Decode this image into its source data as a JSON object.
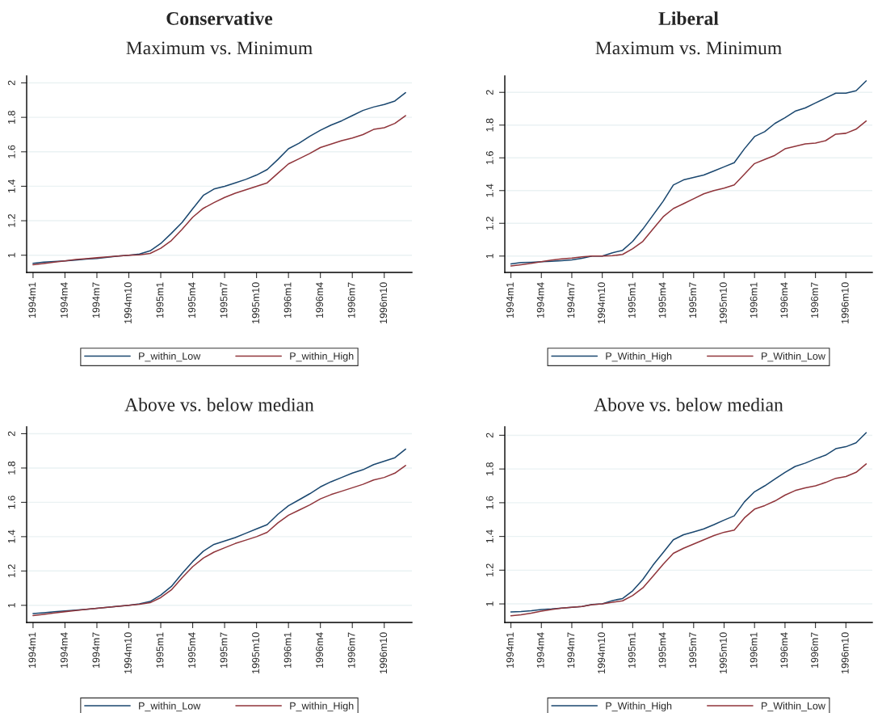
{
  "chart_data": [
    {
      "type": "line",
      "title": "Conservative",
      "subtitle": "Maximum vs. Minimum",
      "categories": [
        "1994m1",
        null,
        null,
        "1994m4",
        null,
        null,
        "1994m7",
        null,
        null,
        "1994m10",
        null,
        null,
        "1995m1",
        null,
        null,
        "1995m4",
        null,
        null,
        "1995m7",
        null,
        null,
        "1995m10",
        null,
        null,
        "1996m1",
        null,
        null,
        "1996m4",
        null,
        null,
        "1996m7",
        null,
        null,
        "1996m10",
        null,
        null
      ],
      "series": [
        {
          "name": "P_within_Low",
          "color": "#1a476f",
          "values": [
            0.953,
            0.96,
            0.963,
            0.967,
            0.972,
            0.977,
            0.981,
            0.988,
            0.995,
            1.0,
            1.007,
            1.025,
            1.068,
            1.127,
            1.19,
            1.269,
            1.347,
            1.384,
            1.4,
            1.42,
            1.44,
            1.465,
            1.497,
            1.555,
            1.618,
            1.65,
            1.69,
            1.725,
            1.755,
            1.78,
            1.81,
            1.84,
            1.86,
            1.875,
            1.895,
            1.943
          ]
        },
        {
          "name": "P_within_High",
          "color": "#90353b",
          "values": [
            0.945,
            0.952,
            0.96,
            0.967,
            0.975,
            0.98,
            0.985,
            0.99,
            0.995,
            1.0,
            1.002,
            1.01,
            1.04,
            1.085,
            1.15,
            1.22,
            1.272,
            1.305,
            1.335,
            1.36,
            1.38,
            1.4,
            1.42,
            1.475,
            1.53,
            1.56,
            1.59,
            1.625,
            1.645,
            1.665,
            1.68,
            1.7,
            1.73,
            1.74,
            1.765,
            1.81
          ]
        }
      ],
      "ylim": [
        0.9,
        2.04
      ],
      "yticks": [
        1,
        1.2,
        1.4,
        1.6,
        1.8,
        2
      ],
      "grid": "y",
      "legend": "bottom"
    },
    {
      "type": "line",
      "title": "Liberal",
      "subtitle": "Maximum vs. Minimum",
      "categories": [
        "1994m1",
        null,
        null,
        "1994m4",
        null,
        null,
        "1994m7",
        null,
        null,
        "1994m10",
        null,
        null,
        "1995m1",
        null,
        null,
        "1995m4",
        null,
        null,
        "1995m7",
        null,
        null,
        "1995m10",
        null,
        null,
        "1996m1",
        null,
        null,
        "1996m4",
        null,
        null,
        "1996m7",
        null,
        null,
        "1996m10",
        null,
        null
      ],
      "series": [
        {
          "name": "P_Within_High",
          "color": "#1a476f",
          "values": [
            0.952,
            0.96,
            0.962,
            0.965,
            0.968,
            0.972,
            0.977,
            0.987,
            1.0,
            1.0,
            1.02,
            1.035,
            1.09,
            1.165,
            1.25,
            1.335,
            1.434,
            1.465,
            1.48,
            1.495,
            1.52,
            1.545,
            1.57,
            1.655,
            1.73,
            1.76,
            1.81,
            1.845,
            1.885,
            1.905,
            1.935,
            1.965,
            1.995,
            1.995,
            2.01,
            2.07
          ]
        },
        {
          "name": "P_Within_Low",
          "color": "#90353b",
          "values": [
            0.94,
            0.947,
            0.955,
            0.965,
            0.975,
            0.983,
            0.988,
            0.995,
            1.0,
            1.0,
            1.002,
            1.01,
            1.045,
            1.09,
            1.165,
            1.24,
            1.29,
            1.32,
            1.35,
            1.38,
            1.4,
            1.415,
            1.435,
            1.5,
            1.565,
            1.59,
            1.615,
            1.655,
            1.67,
            1.685,
            1.69,
            1.705,
            1.745,
            1.75,
            1.775,
            1.825
          ]
        }
      ],
      "ylim": [
        0.9,
        2.1
      ],
      "yticks": [
        1,
        1.2,
        1.4,
        1.6,
        1.8,
        2
      ],
      "grid": "y",
      "legend": "bottom"
    },
    {
      "type": "line",
      "subtitle": "Above vs. below median",
      "categories": [
        "1994m1",
        null,
        null,
        "1994m4",
        null,
        null,
        "1994m7",
        null,
        null,
        "1994m10",
        null,
        null,
        "1995m1",
        null,
        null,
        "1995m4",
        null,
        null,
        "1995m7",
        null,
        null,
        "1995m10",
        null,
        null,
        "1996m1",
        null,
        null,
        "1996m4",
        null,
        null,
        "1996m7",
        null,
        null,
        "1996m10",
        null,
        null
      ],
      "series": [
        {
          "name": "P_within_Low",
          "color": "#1a476f",
          "values": [
            0.952,
            0.957,
            0.962,
            0.967,
            0.972,
            0.977,
            0.982,
            0.988,
            0.994,
            1.0,
            1.008,
            1.022,
            1.06,
            1.11,
            1.185,
            1.255,
            1.315,
            1.355,
            1.375,
            1.395,
            1.42,
            1.445,
            1.47,
            1.53,
            1.58,
            1.615,
            1.65,
            1.69,
            1.72,
            1.745,
            1.77,
            1.79,
            1.82,
            1.84,
            1.86,
            1.91
          ]
        },
        {
          "name": "P_within_High",
          "color": "#90353b",
          "values": [
            0.94,
            0.947,
            0.955,
            0.963,
            0.97,
            0.977,
            0.982,
            0.988,
            0.994,
            1.0,
            1.006,
            1.015,
            1.045,
            1.09,
            1.16,
            1.225,
            1.275,
            1.31,
            1.335,
            1.36,
            1.38,
            1.4,
            1.425,
            1.48,
            1.525,
            1.555,
            1.585,
            1.62,
            1.645,
            1.665,
            1.685,
            1.705,
            1.73,
            1.745,
            1.77,
            1.815
          ]
        }
      ],
      "ylim": [
        0.9,
        2.04
      ],
      "yticks": [
        1,
        1.2,
        1.4,
        1.6,
        1.8,
        2
      ],
      "grid": "y",
      "legend": "bottom"
    },
    {
      "type": "line",
      "subtitle": "Above vs. below median",
      "categories": [
        "1994m1",
        null,
        null,
        "1994m4",
        null,
        null,
        "1994m7",
        null,
        null,
        "1994m10",
        null,
        null,
        "1995m1",
        null,
        null,
        "1995m4",
        null,
        null,
        "1995m7",
        null,
        null,
        "1995m10",
        null,
        null,
        "1996m1",
        null,
        null,
        "1996m4",
        null,
        null,
        "1996m7",
        null,
        null,
        "1996m10",
        null,
        null
      ],
      "series": [
        {
          "name": "P_Within_High",
          "color": "#1a476f",
          "values": [
            0.952,
            0.955,
            0.96,
            0.967,
            0.97,
            0.975,
            0.98,
            0.985,
            0.997,
            1.0,
            1.02,
            1.032,
            1.078,
            1.145,
            1.23,
            1.305,
            1.38,
            1.41,
            1.427,
            1.445,
            1.47,
            1.497,
            1.522,
            1.605,
            1.665,
            1.7,
            1.74,
            1.78,
            1.815,
            1.835,
            1.86,
            1.882,
            1.92,
            1.932,
            1.955,
            2.015
          ]
        },
        {
          "name": "P_Within_Low",
          "color": "#90353b",
          "values": [
            0.93,
            0.935,
            0.945,
            0.957,
            0.967,
            0.975,
            0.98,
            0.985,
            0.995,
            1.0,
            1.01,
            1.018,
            1.05,
            1.095,
            1.165,
            1.235,
            1.3,
            1.33,
            1.355,
            1.38,
            1.405,
            1.425,
            1.438,
            1.51,
            1.562,
            1.583,
            1.61,
            1.645,
            1.672,
            1.688,
            1.7,
            1.72,
            1.745,
            1.755,
            1.78,
            1.83
          ]
        }
      ],
      "ylim": [
        0.89,
        2.05
      ],
      "yticks": [
        1,
        1.2,
        1.4,
        1.6,
        1.8,
        2
      ],
      "grid": "y",
      "legend": "bottom"
    }
  ]
}
